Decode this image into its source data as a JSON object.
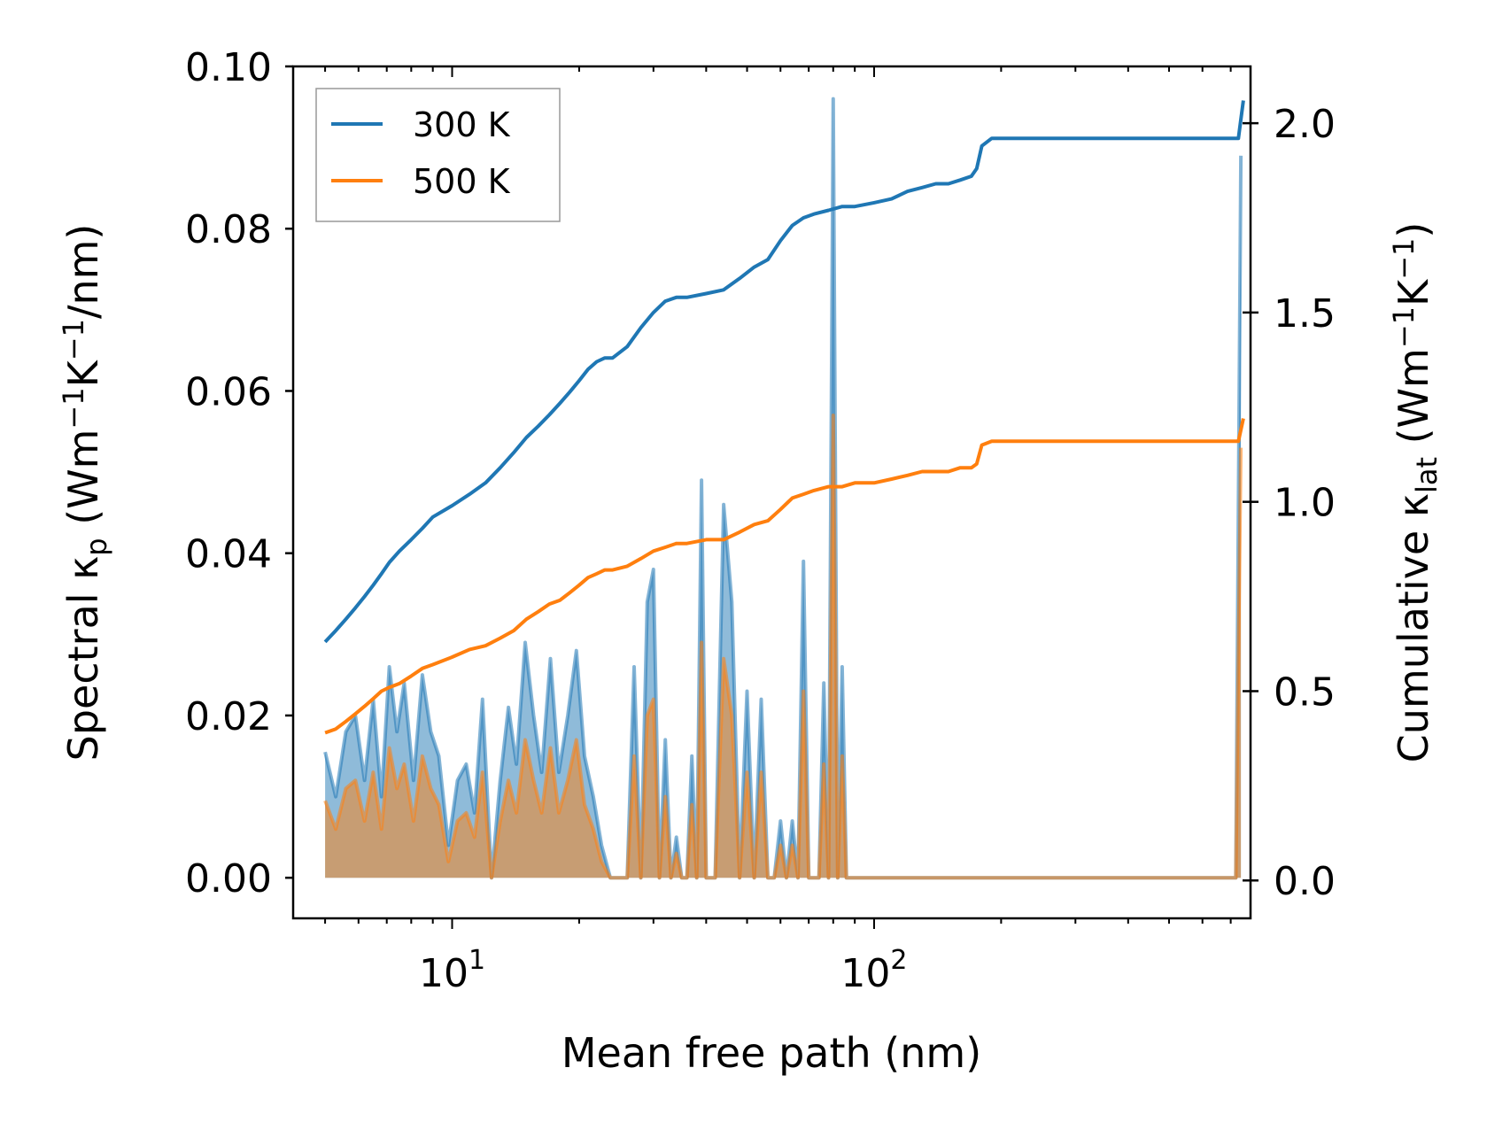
{
  "chart_data": {
    "type": "line",
    "xlabel": "Mean free path (nm)",
    "xscale": "log",
    "xlim": [
      4.2,
      780
    ],
    "x_ticks": [
      {
        "value": 10,
        "base": "10",
        "exp": "1"
      },
      {
        "value": 100,
        "base": "10",
        "exp": "2"
      }
    ],
    "ylabel_left": {
      "pre": "Spectral κ",
      "sub": "p",
      "mid": " (Wm",
      "sup1": "−1",
      "mid2": "K",
      "sup2": "−1",
      "post": "/nm)"
    },
    "ylabel_right": {
      "pre": "Cumulative κ",
      "sub": "lat",
      "mid": " (Wm",
      "sup1": "−1",
      "mid2": "K",
      "sup2": "−1",
      "post": ")"
    },
    "ylim_left": [
      -0.005,
      0.1
    ],
    "ylim_right": [
      -0.1,
      2.15
    ],
    "left_ticks": [
      "0.00",
      "0.02",
      "0.04",
      "0.06",
      "0.08",
      "0.10"
    ],
    "right_ticks": [
      "0.0",
      "0.5",
      "1.0",
      "1.5",
      "2.0"
    ],
    "legend": {
      "position": "top-left",
      "entries": [
        "300 K",
        "500 K"
      ]
    },
    "colors": {
      "300K": "#1f77b4",
      "500K": "#ff7f0e"
    },
    "series": [
      {
        "name": "300 K",
        "axis": "right",
        "kind": "cumulative",
        "x": [
          5,
          5.3,
          5.6,
          5.9,
          6.2,
          6.5,
          6.8,
          7.1,
          7.5,
          8,
          8.5,
          9,
          10,
          11,
          12,
          13,
          14,
          15,
          16,
          17,
          18,
          19,
          20,
          21,
          22,
          23,
          24,
          26,
          28,
          30,
          32,
          34,
          36,
          40,
          44,
          48,
          52,
          56,
          60,
          64,
          68,
          72,
          78,
          84,
          90,
          100,
          110,
          120,
          130,
          140,
          150,
          160,
          170,
          175,
          180,
          190,
          200,
          250,
          300,
          400,
          500,
          600,
          700,
          730,
          750
        ],
        "y": [
          0.63,
          0.66,
          0.69,
          0.72,
          0.75,
          0.78,
          0.81,
          0.84,
          0.87,
          0.9,
          0.93,
          0.96,
          0.99,
          1.02,
          1.05,
          1.09,
          1.13,
          1.17,
          1.2,
          1.23,
          1.26,
          1.29,
          1.32,
          1.35,
          1.37,
          1.38,
          1.38,
          1.41,
          1.46,
          1.5,
          1.53,
          1.54,
          1.54,
          1.55,
          1.56,
          1.59,
          1.62,
          1.64,
          1.69,
          1.73,
          1.75,
          1.76,
          1.77,
          1.78,
          1.78,
          1.79,
          1.8,
          1.82,
          1.83,
          1.84,
          1.84,
          1.85,
          1.86,
          1.88,
          1.94,
          1.96,
          1.96,
          1.96,
          1.96,
          1.96,
          1.96,
          1.96,
          1.96,
          1.96,
          2.06
        ]
      },
      {
        "name": "500 K",
        "axis": "right",
        "kind": "cumulative",
        "x": [
          5,
          5.3,
          5.6,
          5.9,
          6.2,
          6.5,
          6.8,
          7.1,
          7.5,
          8,
          8.5,
          9,
          10,
          11,
          12,
          13,
          14,
          15,
          16,
          17,
          18,
          19,
          20,
          21,
          22,
          23,
          24,
          26,
          28,
          30,
          32,
          34,
          36,
          40,
          44,
          48,
          52,
          56,
          60,
          64,
          68,
          72,
          78,
          84,
          90,
          100,
          110,
          120,
          130,
          140,
          150,
          160,
          170,
          175,
          180,
          190,
          200,
          250,
          300,
          400,
          500,
          600,
          700,
          730,
          750
        ],
        "y": [
          0.39,
          0.4,
          0.42,
          0.44,
          0.46,
          0.48,
          0.5,
          0.51,
          0.52,
          0.54,
          0.56,
          0.57,
          0.59,
          0.61,
          0.62,
          0.64,
          0.66,
          0.69,
          0.71,
          0.73,
          0.74,
          0.76,
          0.78,
          0.8,
          0.81,
          0.82,
          0.82,
          0.83,
          0.85,
          0.87,
          0.88,
          0.89,
          0.89,
          0.9,
          0.9,
          0.92,
          0.94,
          0.95,
          0.98,
          1.01,
          1.02,
          1.03,
          1.04,
          1.04,
          1.05,
          1.05,
          1.06,
          1.07,
          1.08,
          1.08,
          1.08,
          1.09,
          1.09,
          1.1,
          1.15,
          1.16,
          1.16,
          1.16,
          1.16,
          1.16,
          1.16,
          1.16,
          1.16,
          1.16,
          1.22
        ]
      },
      {
        "name": "300 K spectral",
        "axis": "left",
        "kind": "spectral",
        "x": [
          5,
          5.3,
          5.6,
          5.9,
          6.2,
          6.5,
          6.8,
          7.1,
          7.4,
          7.7,
          8.1,
          8.5,
          8.9,
          9.3,
          9.8,
          10.3,
          10.8,
          11.3,
          11.8,
          12.4,
          13,
          13.6,
          14.2,
          14.9,
          15.6,
          16.3,
          17.1,
          17.9,
          18.8,
          19.7,
          20.6,
          21.6,
          22.6,
          23.7,
          24.8,
          26,
          27,
          28,
          29,
          30,
          31,
          32,
          33,
          34,
          35,
          36,
          37,
          38,
          39,
          40,
          42,
          44,
          46,
          48,
          50,
          52,
          54,
          56,
          58,
          60,
          62,
          64,
          66,
          68,
          70,
          72,
          74,
          76,
          78,
          80,
          82,
          84,
          86,
          88,
          100,
          105,
          110,
          115,
          120,
          125,
          130,
          135,
          140,
          150,
          155,
          160,
          165,
          170,
          175,
          180,
          185,
          190,
          195,
          200,
          210,
          700,
          720,
          740
        ],
        "y": [
          0.0155,
          0.01,
          0.018,
          0.02,
          0.012,
          0.022,
          0.01,
          0.026,
          0.018,
          0.024,
          0.012,
          0.025,
          0.018,
          0.015,
          0.004,
          0.012,
          0.014,
          0.008,
          0.022,
          0.0,
          0.012,
          0.021,
          0.014,
          0.029,
          0.02,
          0.013,
          0.027,
          0.013,
          0.02,
          0.028,
          0.015,
          0.01,
          0.004,
          0.0,
          0.0,
          0.0,
          0.026,
          0.0,
          0.034,
          0.038,
          0.0,
          0.017,
          0.0,
          0.005,
          0.0,
          0.0,
          0.015,
          0.0,
          0.049,
          0.0,
          0.0,
          0.046,
          0.034,
          0.0,
          0.023,
          0.0,
          0.022,
          0.0,
          0.0,
          0.007,
          0.0,
          0.007,
          0.0,
          0.039,
          0.0,
          0.0,
          0.0,
          0.024,
          0.0,
          0.096,
          0.0,
          0.026,
          0.0,
          0.0,
          0.0,
          0.0,
          0.0,
          0.0,
          0.0,
          0.0,
          0.0,
          0.0,
          0.0,
          0.0,
          0.0,
          0.0,
          0.0,
          0.0,
          0.0,
          0.0,
          0.0,
          0.0,
          0.0,
          0.0,
          0.0,
          0.0,
          0.0,
          0.089
        ]
      },
      {
        "name": "500 K spectral",
        "axis": "left",
        "kind": "spectral",
        "x": [
          5,
          5.3,
          5.6,
          5.9,
          6.2,
          6.5,
          6.8,
          7.1,
          7.4,
          7.7,
          8.1,
          8.5,
          8.9,
          9.3,
          9.8,
          10.3,
          10.8,
          11.3,
          11.8,
          12.4,
          13,
          13.6,
          14.2,
          14.9,
          15.6,
          16.3,
          17.1,
          17.9,
          18.8,
          19.7,
          20.6,
          21.6,
          22.6,
          23.7,
          24.8,
          26,
          27,
          28,
          29,
          30,
          31,
          32,
          33,
          34,
          35,
          36,
          37,
          38,
          39,
          40,
          42,
          44,
          46,
          48,
          50,
          52,
          54,
          56,
          58,
          60,
          62,
          64,
          66,
          68,
          70,
          72,
          74,
          76,
          78,
          80,
          82,
          84,
          86,
          88,
          100,
          105,
          110,
          115,
          120,
          125,
          130,
          135,
          140,
          150,
          155,
          160,
          165,
          170,
          175,
          180,
          185,
          190,
          195,
          200,
          210,
          700,
          720,
          740
        ],
        "y": [
          0.0095,
          0.006,
          0.011,
          0.012,
          0.007,
          0.013,
          0.006,
          0.016,
          0.011,
          0.014,
          0.007,
          0.015,
          0.011,
          0.009,
          0.002,
          0.007,
          0.008,
          0.005,
          0.013,
          0.0,
          0.007,
          0.012,
          0.008,
          0.017,
          0.012,
          0.008,
          0.016,
          0.008,
          0.012,
          0.017,
          0.009,
          0.006,
          0.002,
          0.0,
          0.0,
          0.0,
          0.015,
          0.0,
          0.02,
          0.022,
          0.0,
          0.01,
          0.0,
          0.003,
          0.0,
          0.0,
          0.009,
          0.0,
          0.029,
          0.0,
          0.0,
          0.027,
          0.02,
          0.0,
          0.013,
          0.0,
          0.013,
          0.0,
          0.0,
          0.004,
          0.0,
          0.004,
          0.0,
          0.023,
          0.0,
          0.0,
          0.0,
          0.014,
          0.0,
          0.057,
          0.0,
          0.015,
          0.0,
          0.0,
          0.0,
          0.0,
          0.0,
          0.0,
          0.0,
          0.0,
          0.0,
          0.0,
          0.0,
          0.0,
          0.0,
          0.0,
          0.0,
          0.0,
          0.0,
          0.0,
          0.0,
          0.0,
          0.0,
          0.0,
          0.0,
          0.0,
          0.0,
          0.053
        ]
      }
    ]
  }
}
